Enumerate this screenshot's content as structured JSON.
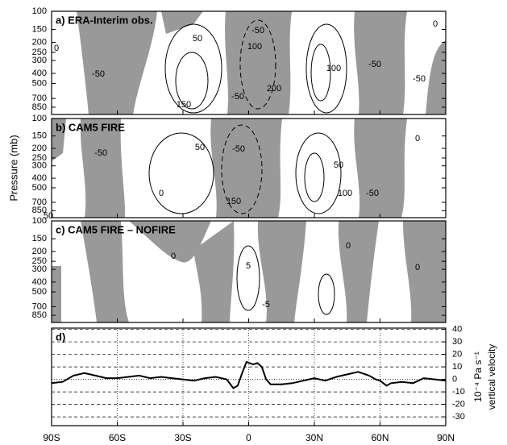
{
  "chart_data": [
    {
      "type": "contour",
      "title": "a) ERA-Interim obs.",
      "xlim": [
        -90,
        90
      ],
      "ylim": [
        1000,
        100
      ],
      "log_y": true,
      "yticks": [
        100,
        150,
        200,
        250,
        300,
        400,
        500,
        700,
        850
      ],
      "shade_color": "#999999",
      "contour_labels": [
        "50",
        "-50",
        "100",
        "200",
        "100",
        "-50",
        "150",
        "-50",
        "-50",
        "0",
        "0",
        "-50"
      ]
    },
    {
      "type": "contour",
      "title": "b) CAM5 FIRE",
      "ylabel": "Pressure (mb)",
      "xlim": [
        -90,
        90
      ],
      "ylim": [
        1000,
        100
      ],
      "log_y": true,
      "yticks": [
        100,
        150,
        200,
        250,
        300,
        400,
        500,
        700,
        850
      ],
      "shade_color": "#999999",
      "contour_labels": [
        "50",
        "-50",
        "50",
        "100",
        "-50",
        "0",
        "0",
        "150",
        "50",
        "-50"
      ]
    },
    {
      "type": "contour",
      "title": "c) CAM5 FIRE – NOFIRE",
      "xlim": [
        -90,
        90
      ],
      "ylim": [
        1000,
        100
      ],
      "log_y": true,
      "yticks": [
        100,
        150,
        200,
        250,
        300,
        400,
        500,
        700,
        850
      ],
      "shade_color": "#999999",
      "contour_labels": [
        "0",
        "5",
        "-5",
        "0",
        "0"
      ]
    },
    {
      "type": "line",
      "title": "d)",
      "color": "#000000",
      "grid": true,
      "ylabel": [
        "10⁻⁴ Pa s⁻¹",
        "vertical velocity"
      ],
      "xlim": [
        -90,
        90
      ],
      "ylim": [
        -37,
        41
      ],
      "xticks": [
        {
          "value": -90,
          "label": "90S"
        },
        {
          "value": -60,
          "label": "60S"
        },
        {
          "value": -30,
          "label": "30S"
        },
        0,
        {
          "value": 30,
          "label": "30N"
        },
        {
          "value": 60,
          "label": "60N"
        },
        {
          "value": 90,
          "label": "90N"
        }
      ],
      "yticks": [
        -30,
        -20,
        -10,
        0,
        10,
        20,
        30,
        40
      ],
      "x": [
        -90,
        -85,
        -80,
        -75,
        -70,
        -65,
        -60,
        -55,
        -50,
        -45,
        -40,
        -35,
        -30,
        -25,
        -20,
        -15,
        -10,
        -7,
        -5,
        -3,
        -1,
        2,
        4,
        6,
        8,
        10,
        15,
        20,
        25,
        30,
        35,
        40,
        45,
        50,
        55,
        58,
        60,
        63,
        65,
        70,
        75,
        80,
        85,
        90
      ],
      "values": [
        -3,
        -2,
        3,
        5,
        3,
        1,
        1,
        2,
        3,
        1,
        2,
        1,
        0,
        -1,
        1,
        2,
        0,
        -7,
        -5,
        5,
        14,
        12,
        13,
        10,
        0,
        -4,
        -4,
        -3,
        -1,
        1,
        -1,
        2,
        4,
        6,
        3,
        0,
        -1,
        -5,
        -3,
        -2,
        -3,
        1,
        0,
        -1
      ]
    }
  ]
}
